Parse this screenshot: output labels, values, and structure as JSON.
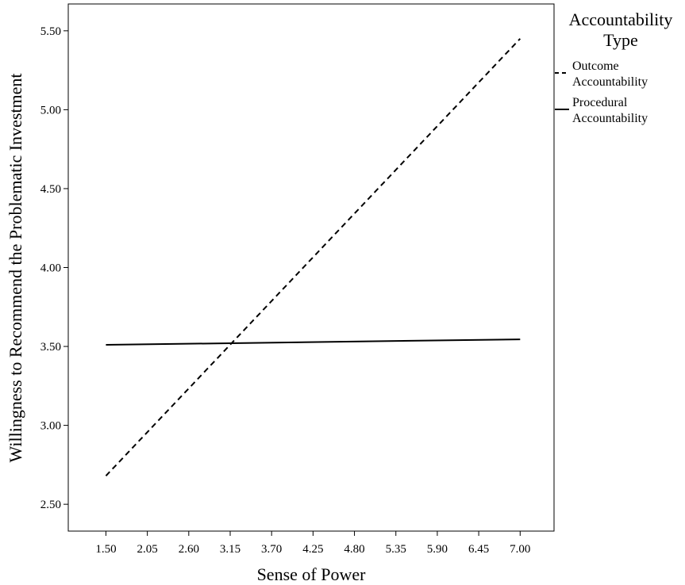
{
  "chart_data": {
    "type": "line",
    "xlabel": "Sense of Power",
    "ylabel": "Willingness to Recommend the Problematic Investment",
    "x_ticks": [
      "1.50",
      "2.05",
      "2.60",
      "3.15",
      "3.70",
      "4.25",
      "4.80",
      "5.35",
      "5.90",
      "6.45",
      "7.00"
    ],
    "y_ticks": [
      "2.50",
      "3.00",
      "3.50",
      "4.00",
      "4.50",
      "5.00",
      "5.50"
    ],
    "xlim": [
      1.0,
      7.45
    ],
    "ylim": [
      2.33,
      5.67
    ],
    "grid": false,
    "legend_position": "right",
    "legend_title": [
      "Accountability",
      "Type"
    ],
    "series": [
      {
        "name": "Outcome Accountability",
        "name_lines": [
          "Outcome",
          "Accountability"
        ],
        "line_style": "dashed",
        "color": "#000000",
        "x": [
          1.5,
          7.0
        ],
        "y": [
          2.68,
          5.45
        ]
      },
      {
        "name": "Procedural Accountability",
        "name_lines": [
          "Procedural",
          "Accountability"
        ],
        "line_style": "solid",
        "color": "#000000",
        "x": [
          1.5,
          7.0
        ],
        "y": [
          3.51,
          3.545
        ]
      }
    ]
  }
}
